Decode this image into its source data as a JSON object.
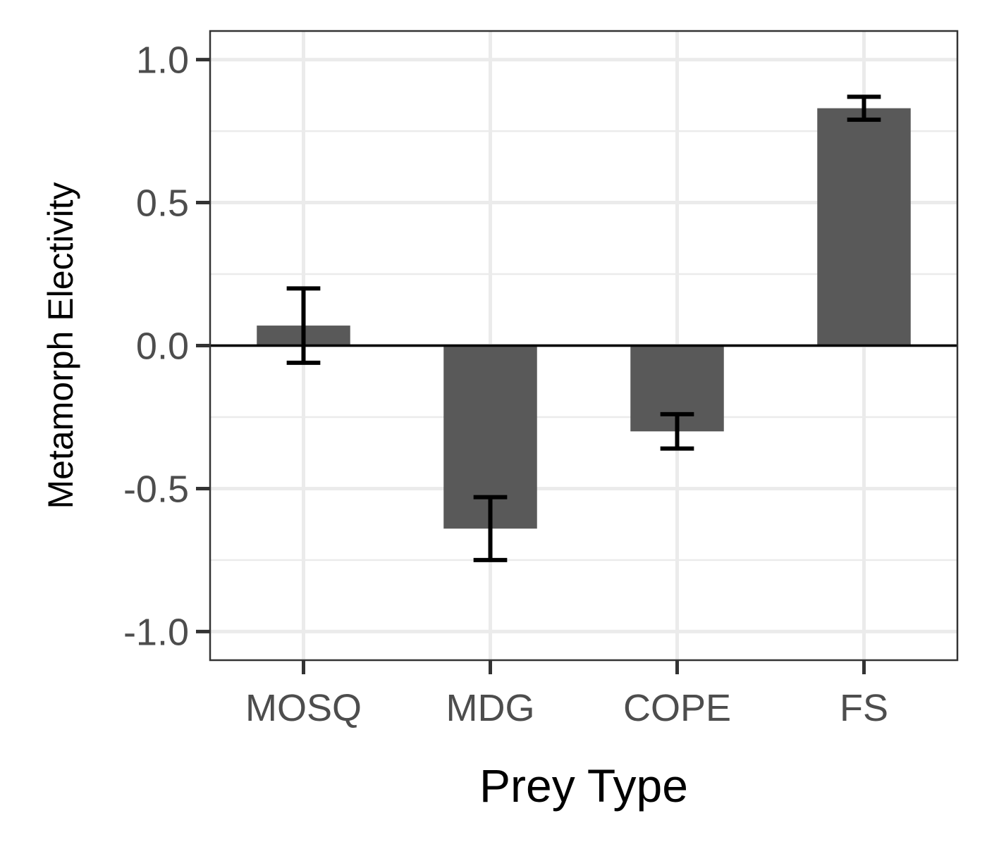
{
  "chart_data": {
    "type": "bar",
    "title": "",
    "xlabel": "Prey Type",
    "ylabel": "Metamorph Electivity",
    "categories": [
      "MOSQ",
      "MDG",
      "COPE",
      "FS"
    ],
    "values": [
      0.07,
      -0.64,
      -0.3,
      0.83
    ],
    "error_low": [
      -0.06,
      -0.75,
      -0.36,
      0.79
    ],
    "error_high": [
      0.2,
      -0.53,
      -0.24,
      0.87
    ],
    "ylim": [
      -1.1,
      1.1
    ],
    "yticks": [
      1.0,
      0.5,
      0.0,
      -0.5,
      -1.0
    ],
    "ytick_labels": [
      "1.0",
      "0.5",
      "0.0",
      "-0.5",
      "-1.0"
    ],
    "reference_line": 0.0,
    "grid": true,
    "legend": "none",
    "colors": {
      "bar": "#595959",
      "error_bar": "#000000",
      "grid": "#ebebeb",
      "panel_border": "#333333",
      "tick_label": "#4d4d4d",
      "axis_title": "#000000"
    }
  }
}
